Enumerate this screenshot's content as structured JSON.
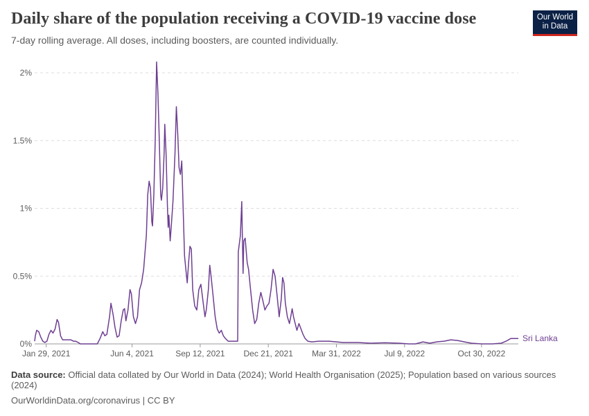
{
  "title": "Daily share of the population receiving a COVID-19 vaccine dose",
  "subtitle": "7-day rolling average. All doses, including boosters, are counted individually.",
  "logo": {
    "line1": "Our World",
    "line2": "in Data"
  },
  "footer": {
    "source_label": "Data source:",
    "source_text": "Official data collated by Our World in Data (2024); World Health Organisation (2025); Population based on various sources (2024)",
    "url_license": "OurWorldinData.org/coronavirus | CC BY"
  },
  "colors": {
    "series": "#6d3e91",
    "grid": "#dddddd",
    "axis": "#999999",
    "text": "#5b5b5b"
  },
  "chart_data": {
    "type": "line",
    "title": "Daily share of the population receiving a COVID-19 vaccine dose",
    "subtitle": "7-day rolling average. All doses, including boosters, are counted individually.",
    "xlabel": "",
    "ylabel": "",
    "x_range": [
      "2021-01-12",
      "2022-12-23"
    ],
    "ylim": [
      0,
      2
    ],
    "y_ticks": [
      {
        "value": 0,
        "label": "0%"
      },
      {
        "value": 0.5,
        "label": "0.5%"
      },
      {
        "value": 1,
        "label": "1%"
      },
      {
        "value": 1.5,
        "label": "1.5%"
      },
      {
        "value": 2,
        "label": "2%"
      }
    ],
    "x_ticks": [
      {
        "date": "2021-01-29",
        "label": "Jan 29, 2021"
      },
      {
        "date": "2021-06-04",
        "label": "Jun 4, 2021"
      },
      {
        "date": "2021-09-12",
        "label": "Sep 12, 2021"
      },
      {
        "date": "2021-12-21",
        "label": "Dec 21, 2021"
      },
      {
        "date": "2022-03-31",
        "label": "Mar 31, 2022"
      },
      {
        "date": "2022-07-09",
        "label": "Jul 9, 2022"
      },
      {
        "date": "2022-10-30",
        "label": "Oct 30, 2022"
      }
    ],
    "grid": "horizontal dashed",
    "legend": "inline label at end of line",
    "series": [
      {
        "name": "Sri Lanka",
        "color": "#6d3e91",
        "points": [
          [
            "2021-01-12",
            0.02
          ],
          [
            "2021-01-13",
            0.06
          ],
          [
            "2021-01-15",
            0.1
          ],
          [
            "2021-01-18",
            0.09
          ],
          [
            "2021-01-21",
            0.05
          ],
          [
            "2021-01-24",
            0.02
          ],
          [
            "2021-01-27",
            0.01
          ],
          [
            "2021-01-30",
            0.02
          ],
          [
            "2021-02-02",
            0.07
          ],
          [
            "2021-02-05",
            0.1
          ],
          [
            "2021-02-08",
            0.08
          ],
          [
            "2021-02-11",
            0.11
          ],
          [
            "2021-02-14",
            0.18
          ],
          [
            "2021-02-16",
            0.16
          ],
          [
            "2021-02-19",
            0.06
          ],
          [
            "2021-02-22",
            0.03
          ],
          [
            "2021-02-26",
            0.03
          ],
          [
            "2021-03-02",
            0.03
          ],
          [
            "2021-03-06",
            0.03
          ],
          [
            "2021-03-10",
            0.02
          ],
          [
            "2021-03-13",
            0.02
          ],
          [
            "2021-03-17",
            0.01
          ],
          [
            "2021-03-20",
            0.0
          ],
          [
            "2021-03-26",
            0.0
          ],
          [
            "2021-04-02",
            0.0
          ],
          [
            "2021-04-09",
            0.0
          ],
          [
            "2021-04-14",
            0.0
          ],
          [
            "2021-04-18",
            0.04
          ],
          [
            "2021-04-22",
            0.09
          ],
          [
            "2021-04-25",
            0.06
          ],
          [
            "2021-04-28",
            0.07
          ],
          [
            "2021-05-02",
            0.2
          ],
          [
            "2021-05-04",
            0.3
          ],
          [
            "2021-05-07",
            0.22
          ],
          [
            "2021-05-10",
            0.12
          ],
          [
            "2021-05-13",
            0.05
          ],
          [
            "2021-05-16",
            0.06
          ],
          [
            "2021-05-19",
            0.17
          ],
          [
            "2021-05-22",
            0.25
          ],
          [
            "2021-05-24",
            0.26
          ],
          [
            "2021-05-26",
            0.17
          ],
          [
            "2021-05-29",
            0.25
          ],
          [
            "2021-06-01",
            0.4
          ],
          [
            "2021-06-03",
            0.37
          ],
          [
            "2021-06-06",
            0.2
          ],
          [
            "2021-06-09",
            0.15
          ],
          [
            "2021-06-12",
            0.2
          ],
          [
            "2021-06-15",
            0.4
          ],
          [
            "2021-06-18",
            0.45
          ],
          [
            "2021-06-21",
            0.55
          ],
          [
            "2021-06-25",
            0.8
          ],
          [
            "2021-06-27",
            1.1
          ],
          [
            "2021-06-29",
            1.2
          ],
          [
            "2021-07-01",
            1.15
          ],
          [
            "2021-07-03",
            0.9
          ],
          [
            "2021-07-04",
            0.87
          ],
          [
            "2021-07-06",
            1.1
          ],
          [
            "2021-07-08",
            1.5
          ],
          [
            "2021-07-10",
            2.08
          ],
          [
            "2021-07-12",
            1.85
          ],
          [
            "2021-07-14",
            1.5
          ],
          [
            "2021-07-16",
            1.1
          ],
          [
            "2021-07-17",
            1.06
          ],
          [
            "2021-07-19",
            1.15
          ],
          [
            "2021-07-21",
            1.4
          ],
          [
            "2021-07-22",
            1.62
          ],
          [
            "2021-07-24",
            1.4
          ],
          [
            "2021-07-26",
            1.0
          ],
          [
            "2021-07-27",
            0.86
          ],
          [
            "2021-07-28",
            0.95
          ],
          [
            "2021-07-30",
            0.76
          ],
          [
            "2021-08-01",
            0.9
          ],
          [
            "2021-08-03",
            1.05
          ],
          [
            "2021-08-06",
            1.4
          ],
          [
            "2021-08-08",
            1.75
          ],
          [
            "2021-08-10",
            1.55
          ],
          [
            "2021-08-12",
            1.3
          ],
          [
            "2021-08-14",
            1.25
          ],
          [
            "2021-08-16",
            1.35
          ],
          [
            "2021-08-18",
            1.0
          ],
          [
            "2021-08-20",
            0.65
          ],
          [
            "2021-08-22",
            0.55
          ],
          [
            "2021-08-24",
            0.45
          ],
          [
            "2021-08-26",
            0.6
          ],
          [
            "2021-08-28",
            0.72
          ],
          [
            "2021-08-30",
            0.7
          ],
          [
            "2021-09-01",
            0.4
          ],
          [
            "2021-09-04",
            0.28
          ],
          [
            "2021-09-07",
            0.25
          ],
          [
            "2021-09-10",
            0.4
          ],
          [
            "2021-09-13",
            0.44
          ],
          [
            "2021-09-16",
            0.32
          ],
          [
            "2021-09-19",
            0.2
          ],
          [
            "2021-09-21",
            0.25
          ],
          [
            "2021-09-24",
            0.4
          ],
          [
            "2021-09-26",
            0.58
          ],
          [
            "2021-09-28",
            0.5
          ],
          [
            "2021-10-01",
            0.35
          ],
          [
            "2021-10-04",
            0.2
          ],
          [
            "2021-10-07",
            0.11
          ],
          [
            "2021-10-10",
            0.08
          ],
          [
            "2021-10-13",
            0.1
          ],
          [
            "2021-10-16",
            0.06
          ],
          [
            "2021-10-19",
            0.04
          ],
          [
            "2021-10-23",
            0.02
          ],
          [
            "2021-10-27",
            0.02
          ],
          [
            "2021-11-02",
            0.02
          ],
          [
            "2021-11-06",
            0.02
          ],
          [
            "2021-11-07",
            0.68
          ],
          [
            "2021-11-10",
            0.8
          ],
          [
            "2021-11-12",
            1.05
          ],
          [
            "2021-11-13",
            0.78
          ],
          [
            "2021-11-14",
            0.52
          ],
          [
            "2021-11-15",
            0.76
          ],
          [
            "2021-11-17",
            0.78
          ],
          [
            "2021-11-20",
            0.6
          ],
          [
            "2021-11-22",
            0.55
          ],
          [
            "2021-11-25",
            0.4
          ],
          [
            "2021-11-28",
            0.25
          ],
          [
            "2021-12-01",
            0.15
          ],
          [
            "2021-12-04",
            0.18
          ],
          [
            "2021-12-07",
            0.3
          ],
          [
            "2021-12-10",
            0.38
          ],
          [
            "2021-12-13",
            0.32
          ],
          [
            "2021-12-16",
            0.25
          ],
          [
            "2021-12-19",
            0.28
          ],
          [
            "2021-12-22",
            0.3
          ],
          [
            "2021-12-25",
            0.4
          ],
          [
            "2021-12-28",
            0.55
          ],
          [
            "2021-12-31",
            0.5
          ],
          [
            "2022-01-03",
            0.35
          ],
          [
            "2022-01-06",
            0.2
          ],
          [
            "2022-01-09",
            0.33
          ],
          [
            "2022-01-11",
            0.49
          ],
          [
            "2022-01-13",
            0.45
          ],
          [
            "2022-01-15",
            0.3
          ],
          [
            "2022-01-18",
            0.2
          ],
          [
            "2022-01-21",
            0.15
          ],
          [
            "2022-01-23",
            0.2
          ],
          [
            "2022-01-25",
            0.26
          ],
          [
            "2022-01-27",
            0.2
          ],
          [
            "2022-01-29",
            0.16
          ],
          [
            "2022-02-01",
            0.1
          ],
          [
            "2022-02-04",
            0.15
          ],
          [
            "2022-02-07",
            0.11
          ],
          [
            "2022-02-10",
            0.07
          ],
          [
            "2022-02-13",
            0.04
          ],
          [
            "2022-02-17",
            0.02
          ],
          [
            "2022-02-23",
            0.015
          ],
          [
            "2022-03-05",
            0.02
          ],
          [
            "2022-03-20",
            0.02
          ],
          [
            "2022-04-10",
            0.01
          ],
          [
            "2022-05-01",
            0.01
          ],
          [
            "2022-05-20",
            0.005
          ],
          [
            "2022-06-10",
            0.008
          ],
          [
            "2022-07-01",
            0.005
          ],
          [
            "2022-07-15",
            0.0
          ],
          [
            "2022-07-25",
            0.0
          ],
          [
            "2022-08-05",
            0.015
          ],
          [
            "2022-08-15",
            0.005
          ],
          [
            "2022-08-25",
            0.015
          ],
          [
            "2022-09-05",
            0.02
          ],
          [
            "2022-09-15",
            0.03
          ],
          [
            "2022-09-25",
            0.025
          ],
          [
            "2022-10-05",
            0.015
          ],
          [
            "2022-10-15",
            0.005
          ],
          [
            "2022-10-30",
            0.0
          ],
          [
            "2022-11-15",
            0.0
          ],
          [
            "2022-11-28",
            0.005
          ],
          [
            "2022-12-05",
            0.02
          ],
          [
            "2022-12-12",
            0.04
          ],
          [
            "2022-12-23",
            0.04
          ]
        ]
      }
    ]
  }
}
